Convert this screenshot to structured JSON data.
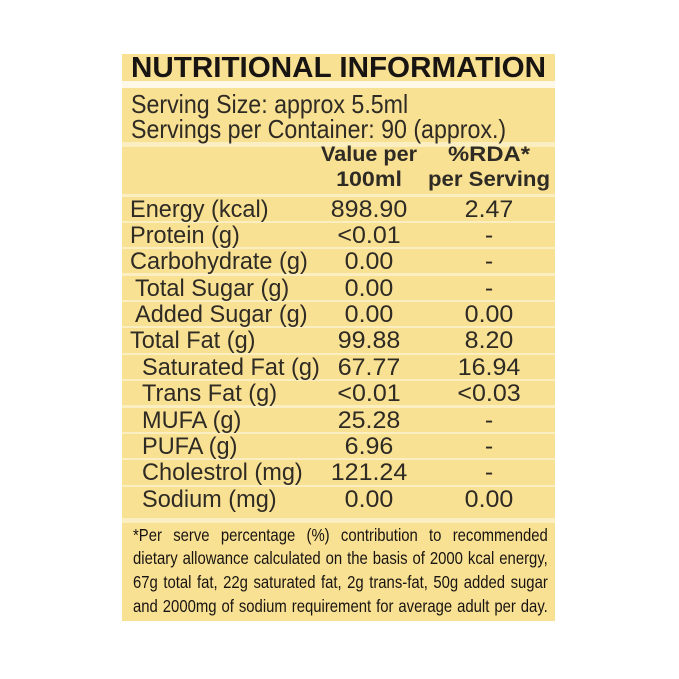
{
  "label": {
    "title": "NUTRITIONAL INFORMATION",
    "serving_info": {
      "serving_size": "Serving Size: approx 5.5ml",
      "servings_per_container": "Servings per Container: 90 (approx.)"
    },
    "column_headers": {
      "value": {
        "line1": "Value per",
        "line2": "100ml"
      },
      "rda": {
        "line1": "%RDA*",
        "line2": "per Serving"
      }
    },
    "rows": [
      {
        "name": "Energy (kcal)",
        "indent": 0,
        "value": "898.90",
        "rda": "2.47"
      },
      {
        "name": "Protein (g)",
        "indent": 0,
        "value": "<0.01",
        "rda": "-"
      },
      {
        "name": "Carbohydrate (g)",
        "indent": 0,
        "value": "0.00",
        "rda": "-"
      },
      {
        "name": "Total Sugar (g)",
        "indent": 1,
        "value": "0.00",
        "rda": "-"
      },
      {
        "name": "Added Sugar (g)",
        "indent": 1,
        "value": "0.00",
        "rda": "0.00"
      },
      {
        "name": "Total Fat (g)",
        "indent": 0,
        "value": "99.88",
        "rda": "8.20"
      },
      {
        "name": "Saturated Fat (g)",
        "indent": 2,
        "value": "67.77",
        "rda": "16.94"
      },
      {
        "name": "Trans Fat (g)",
        "indent": 2,
        "value": "<0.01",
        "rda": "<0.03"
      },
      {
        "name": "MUFA (g)",
        "indent": 2,
        "value": "25.28",
        "rda": "-"
      },
      {
        "name": "PUFA (g)",
        "indent": 2,
        "value": "6.96",
        "rda": "-"
      },
      {
        "name": "Cholestrol (mg)",
        "indent": 2,
        "value": "121.24",
        "rda": "-"
      },
      {
        "name": "Sodium (mg)",
        "indent": 2,
        "value": "0.00",
        "rda": "0.00"
      }
    ],
    "footnote_lines": [
      "*Per serve percentage (%) contribution to recommended",
      "dietary allowance calculated on the basis of 2000 kcal energy,",
      "67g total fat, 22g saturated fat, 2g trans-fat, 50g added sugar",
      "and 2000mg of sodium requirement for average adult per day."
    ],
    "colors": {
      "band_yellow": "#f9e193",
      "separator_pale": "#fbeec0",
      "gap_white": "#fdf8e8",
      "text": "#2e2a24",
      "title_text": "#181411",
      "page_background": "#ffffff"
    }
  }
}
